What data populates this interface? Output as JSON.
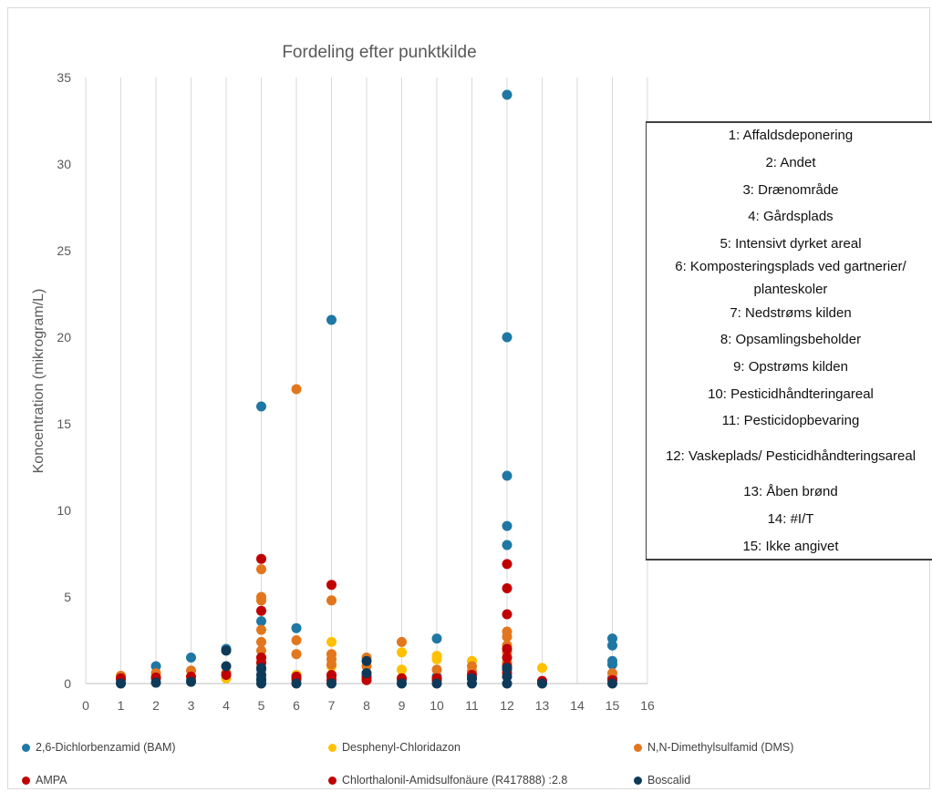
{
  "chart_data": {
    "type": "scatter",
    "title": "Fordeling efter punktkilde",
    "xlabel": "",
    "ylabel": "Koncentration (mikrogram/L)",
    "xlim": [
      0,
      16
    ],
    "ylim": [
      0,
      35
    ],
    "x_ticks": [
      0,
      1,
      2,
      3,
      4,
      5,
      6,
      7,
      8,
      9,
      10,
      11,
      12,
      13,
      14,
      15,
      16
    ],
    "y_ticks": [
      0,
      5,
      10,
      15,
      20,
      25,
      30,
      35
    ],
    "grid": "vertical",
    "legend_position": "bottom",
    "colors": {
      "bam": "#1f77a4",
      "desphenyl": "#ffc000",
      "dms": "#e2761d",
      "ampa": "#c00000",
      "chlorthalonil": "#c00000",
      "boscalid": "#0e3a5a"
    },
    "series": [
      {
        "name": "2,6-Dichlorbenzamid (BAM)",
        "key": "bam",
        "color": "#1f77a4",
        "x": [
          1,
          1,
          2,
          2,
          3,
          3,
          4,
          4,
          5,
          5,
          5,
          5,
          6,
          6,
          7,
          7,
          8,
          9,
          10,
          10,
          11,
          12,
          12,
          12,
          12,
          12,
          12,
          13,
          15,
          15,
          15,
          15,
          15
        ],
        "y": [
          0.2,
          0.05,
          1.0,
          0.3,
          1.5,
          0.2,
          2.0,
          0.6,
          16.0,
          3.6,
          0.8,
          0.3,
          3.2,
          0.2,
          21.0,
          0.4,
          0.3,
          0.2,
          2.6,
          0.4,
          0.3,
          34.0,
          20.0,
          12.0,
          9.1,
          8.0,
          0.8,
          0.1,
          2.6,
          2.2,
          1.3,
          1.1,
          0.3
        ]
      },
      {
        "name": "Desphenyl-Chloridazon",
        "key": "desphenyl",
        "color": "#ffc000",
        "x": [
          4,
          5,
          6,
          7,
          7,
          8,
          9,
          9,
          10,
          10,
          11,
          12,
          13
        ],
        "y": [
          0.3,
          1.2,
          0.5,
          2.4,
          1.0,
          0.6,
          1.8,
          0.8,
          1.6,
          1.4,
          1.3,
          1.0,
          0.9
        ]
      },
      {
        "name": "N,N-Dimethylsulfamid (DMS)",
        "key": "dms",
        "color": "#e2761d",
        "x": [
          1,
          2,
          3,
          4,
          5,
          5,
          5,
          5,
          5,
          5,
          5,
          6,
          6,
          6,
          7,
          7,
          7,
          7,
          8,
          8,
          9,
          10,
          11,
          11,
          12,
          12,
          12,
          12,
          12,
          15
        ],
        "y": [
          0.45,
          0.6,
          0.75,
          0.6,
          6.6,
          5.0,
          4.8,
          3.1,
          2.4,
          1.9,
          1.5,
          17.0,
          2.5,
          1.7,
          4.8,
          1.7,
          1.4,
          1.1,
          1.5,
          1.0,
          2.4,
          0.8,
          1.0,
          0.7,
          3.0,
          2.7,
          2.2,
          1.8,
          1.2,
          0.6
        ]
      },
      {
        "name": "AMPA",
        "key": "ampa",
        "color": "#c00000",
        "x": [
          1,
          2,
          3,
          4,
          5,
          5,
          5,
          6,
          7,
          7,
          8,
          9,
          10,
          11,
          12,
          12,
          12,
          12,
          13
        ],
        "y": [
          0.3,
          0.35,
          0.4,
          0.5,
          7.2,
          4.2,
          1.5,
          0.4,
          5.7,
          0.5,
          0.4,
          0.3,
          0.3,
          0.5,
          6.9,
          5.5,
          4.0,
          2.0,
          0.15
        ]
      },
      {
        "name": "Chlorthalonil-Amidsulfonäure (R417888) :2.8",
        "key": "chlorthalonil",
        "color": "#c00000",
        "x": [
          5,
          6,
          7,
          8,
          10,
          11,
          12,
          12,
          12,
          15
        ],
        "y": [
          1.2,
          0.3,
          0.2,
          0.2,
          0.2,
          0.3,
          1.5,
          1.0,
          0.6,
          0.2
        ]
      },
      {
        "name": "Boscalid",
        "key": "boscalid",
        "color": "#0e3a5a",
        "x": [
          1,
          2,
          3,
          4,
          4,
          5,
          5,
          5,
          5,
          6,
          7,
          8,
          8,
          9,
          10,
          11,
          11,
          12,
          12,
          12,
          13,
          15
        ],
        "y": [
          0.0,
          0.05,
          0.1,
          1.9,
          1.0,
          0.9,
          0.5,
          0.2,
          0.0,
          0.0,
          0.0,
          1.3,
          0.6,
          0.0,
          0.0,
          0.3,
          0.0,
          0.9,
          0.4,
          0.0,
          0.0,
          0.0
        ]
      }
    ]
  },
  "key_box": {
    "items": [
      "1: Affaldsdeponering",
      "2: Andet",
      "3: Drænområde",
      "4: Gårdsplads",
      "5: Intensivt dyrket areal",
      "6: Komposteringsplads ved gartnerier/",
      "planteskoler",
      "7: Nedstrøms kilden",
      "8: Opsamlingsbeholder",
      "9: Opstrøms kilden",
      "10: Pesticidhåndteringareal",
      "11: Pesticidopbevaring",
      "12: Vaskeplads/ Pesticidhåndteringsareal",
      "13: Åben brønd",
      "14: #I/T",
      "15: Ikke angivet"
    ]
  }
}
